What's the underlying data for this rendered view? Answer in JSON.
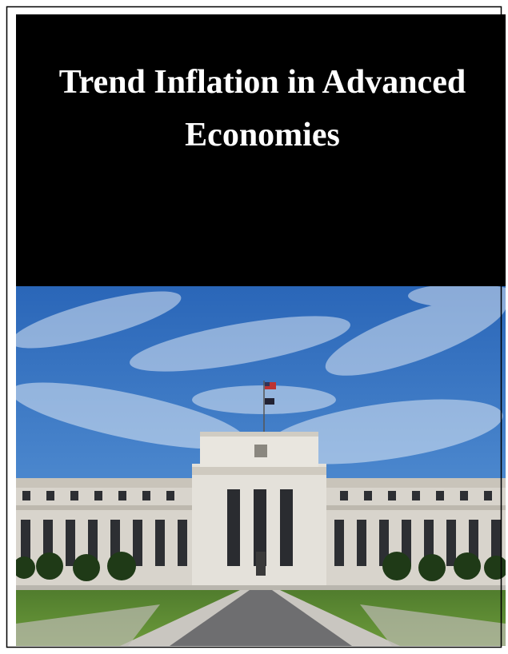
{
  "cover": {
    "title_lines": [
      "Trend Inflation in Advanced",
      "Economies"
    ]
  }
}
